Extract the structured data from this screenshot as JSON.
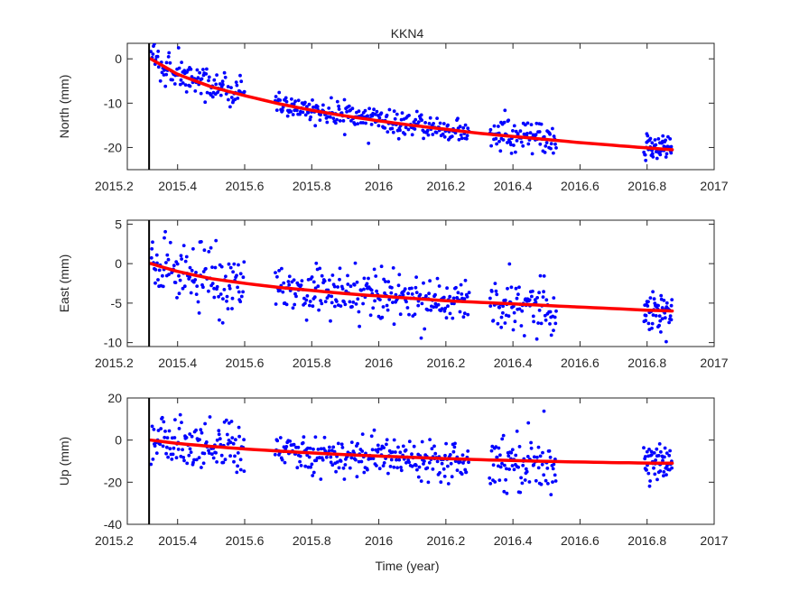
{
  "colors": {
    "background": "#ffffff",
    "axes": "#262626",
    "points": "#0000ff",
    "fit_line": "#ff0000",
    "event_line": "#000000"
  },
  "chart_data": {
    "type": "scatter",
    "title": "KKN4",
    "xlabel": "Time (year)",
    "xlim": [
      2015.25,
      2017.0
    ],
    "xticks": [
      2015.2,
      2015.4,
      2015.6,
      2015.8,
      2016,
      2016.2,
      2016.4,
      2016.6,
      2016.8,
      2017
    ],
    "xtick_labels": [
      "2015.2",
      "2015.4",
      "2015.6",
      "2015.8",
      "2016",
      "2016.2",
      "2016.4",
      "2016.6",
      "2016.8",
      "2017"
    ],
    "event_line_x": 2015.315,
    "grid": false,
    "legend": "none",
    "panels": [
      {
        "ylabel": "North (mm)",
        "ylim": [
          -25,
          3.5
        ],
        "yticks": [
          0,
          -10,
          -20
        ],
        "ytick_labels": [
          "0",
          "-10",
          "-20"
        ],
        "fit_curve": {
          "x": [
            2015.32,
            2015.4,
            2015.5,
            2015.6,
            2015.7,
            2015.8,
            2015.9,
            2016.0,
            2016.1,
            2016.2,
            2016.3,
            2016.4,
            2016.5,
            2016.6,
            2016.7,
            2016.8,
            2016.875
          ],
          "y": [
            0,
            -3.5,
            -6.3,
            -8.3,
            -10.1,
            -11.6,
            -12.9,
            -14.0,
            -15.0,
            -15.9,
            -16.8,
            -17.5,
            -18.2,
            -18.9,
            -19.5,
            -20.1,
            -20.5
          ]
        },
        "observations": {
          "segments": [
            {
              "x_start": 2015.32,
              "x_end": 2015.6,
              "count": 120,
              "spread": 2.0
            },
            {
              "x_start": 2015.69,
              "x_end": 2016.27,
              "count": 240,
              "spread": 1.4
            },
            {
              "x_start": 2016.33,
              "x_end": 2016.53,
              "count": 90,
              "spread": 1.8
            },
            {
              "x_start": 2016.79,
              "x_end": 2016.875,
              "count": 55,
              "spread": 1.4
            }
          ]
        }
      },
      {
        "ylabel": "East (mm)",
        "ylim": [
          -10.5,
          5.5
        ],
        "yticks": [
          5,
          0,
          -5,
          -10
        ],
        "ytick_labels": [
          "5",
          "0",
          "-5",
          "-10"
        ],
        "fit_curve": {
          "x": [
            2015.32,
            2015.4,
            2015.5,
            2015.6,
            2015.7,
            2015.8,
            2015.9,
            2016.0,
            2016.1,
            2016.2,
            2016.3,
            2016.4,
            2016.5,
            2016.6,
            2016.7,
            2016.8,
            2016.875
          ],
          "y": [
            0,
            -1.0,
            -1.9,
            -2.5,
            -3.0,
            -3.4,
            -3.8,
            -4.1,
            -4.4,
            -4.7,
            -4.9,
            -5.1,
            -5.3,
            -5.5,
            -5.7,
            -5.9,
            -6.0
          ]
        },
        "observations": {
          "segments": [
            {
              "x_start": 2015.32,
              "x_end": 2015.6,
              "count": 120,
              "spread": 2.0
            },
            {
              "x_start": 2015.69,
              "x_end": 2016.27,
              "count": 240,
              "spread": 1.5
            },
            {
              "x_start": 2016.33,
              "x_end": 2016.53,
              "count": 90,
              "spread": 1.9
            },
            {
              "x_start": 2016.79,
              "x_end": 2016.875,
              "count": 55,
              "spread": 1.2
            }
          ]
        }
      },
      {
        "ylabel": "Up (mm)",
        "ylim": [
          -40,
          20
        ],
        "yticks": [
          20,
          0,
          -20,
          -40
        ],
        "ytick_labels": [
          "20",
          "0",
          "-20",
          "-40"
        ],
        "fit_curve": {
          "x": [
            2015.32,
            2015.4,
            2015.5,
            2015.6,
            2015.7,
            2015.8,
            2015.9,
            2016.0,
            2016.1,
            2016.2,
            2016.3,
            2016.4,
            2016.5,
            2016.6,
            2016.7,
            2016.8,
            2016.875
          ],
          "y": [
            0,
            -1.6,
            -3.0,
            -4.2,
            -5.2,
            -6.1,
            -6.9,
            -7.6,
            -8.2,
            -8.8,
            -9.3,
            -9.7,
            -10.1,
            -10.4,
            -10.7,
            -10.9,
            -11.0
          ]
        },
        "observations": {
          "segments": [
            {
              "x_start": 2015.32,
              "x_end": 2015.6,
              "count": 120,
              "spread": 6.5
            },
            {
              "x_start": 2015.69,
              "x_end": 2016.27,
              "count": 240,
              "spread": 4.5
            },
            {
              "x_start": 2016.33,
              "x_end": 2016.53,
              "count": 90,
              "spread": 7.0
            },
            {
              "x_start": 2016.79,
              "x_end": 2016.875,
              "count": 55,
              "spread": 3.5
            }
          ]
        }
      }
    ]
  }
}
